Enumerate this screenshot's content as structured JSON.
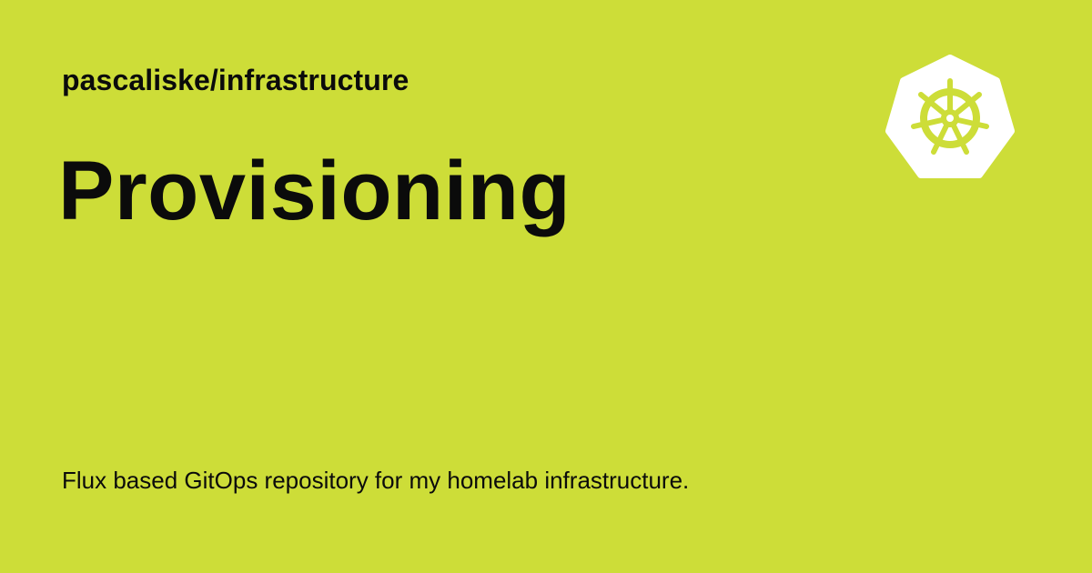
{
  "card": {
    "repository": "pascaliske/infrastructure",
    "title": "Provisioning",
    "description": "Flux based GitOps repository for my homelab infrastructure.",
    "logo_icon": "kubernetes-helm-icon"
  },
  "colors": {
    "background": "#cddd38",
    "text": "#0b0b0b",
    "logo": "#ffffff"
  }
}
